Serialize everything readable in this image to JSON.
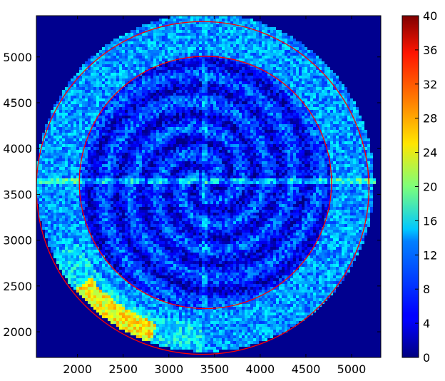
{
  "chart_data": {
    "type": "heatmap",
    "title": "",
    "xlabel": "",
    "ylabel": "",
    "xlim": [
      1550,
      5320
    ],
    "ylim": [
      1720,
      5450
    ],
    "x_ticks": [
      2000,
      2500,
      3000,
      3500,
      4000,
      4500,
      5000
    ],
    "y_ticks": [
      2000,
      2500,
      3000,
      3500,
      4000,
      4500,
      5000
    ],
    "colormap": "jet",
    "colorbar": {
      "range": [
        0,
        40
      ],
      "ticks": [
        0,
        4,
        8,
        12,
        16,
        20,
        24,
        28,
        32,
        36,
        40
      ]
    },
    "background_color": "#00008f",
    "pattern": {
      "center": [
        3400,
        3630
      ],
      "outer_radius": 1850,
      "inner_radius": 1380,
      "typical_counts_outer_ring": 11,
      "typical_counts_inner_disc": 6,
      "hotspot_counts": 22
    },
    "overlay_circles": [
      {
        "cx": 3370,
        "cy": 3570,
        "r": 1820,
        "color": "#ff0000"
      },
      {
        "cx": 3400,
        "cy": 3630,
        "r": 1380,
        "color": "#ff0000"
      }
    ]
  }
}
